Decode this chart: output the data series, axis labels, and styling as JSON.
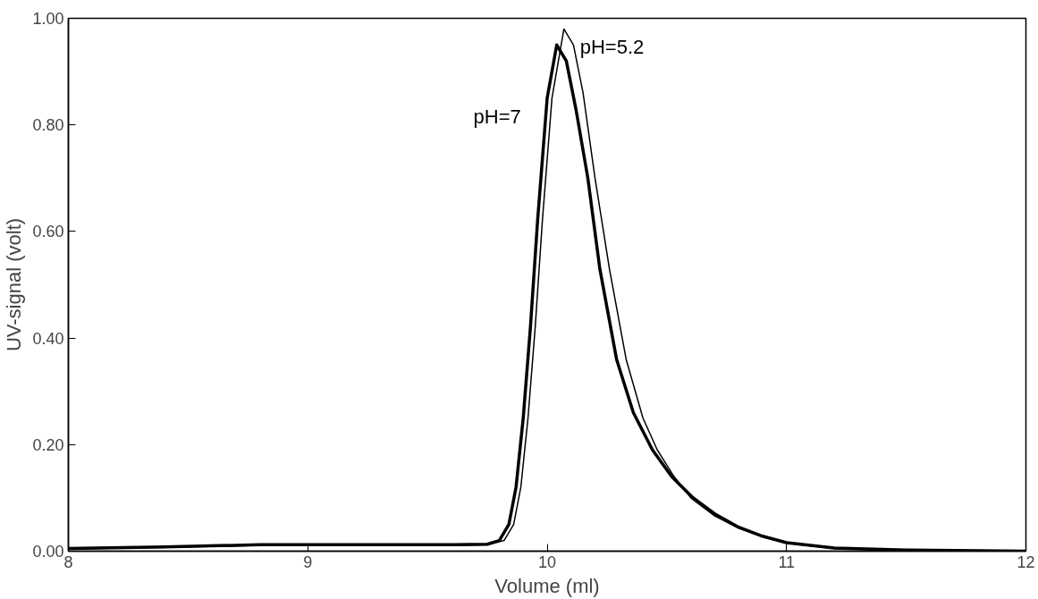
{
  "chart_data": {
    "type": "line",
    "xlabel": "Volume (ml)",
    "ylabel": "UV-signal (volt)",
    "xlim": [
      8,
      12
    ],
    "ylim": [
      0,
      1
    ],
    "xticks": [
      8,
      9,
      10,
      11,
      12
    ],
    "yticks": [
      {
        "value": 0,
        "label": "0.00"
      },
      {
        "value": 0.2,
        "label": "0.20"
      },
      {
        "value": 0.4,
        "label": "0.40"
      },
      {
        "value": 0.6,
        "label": "0.60"
      },
      {
        "value": 0.8,
        "label": "0.80"
      },
      {
        "value": 1,
        "label": "1.00"
      }
    ],
    "grid": false,
    "marker": "none",
    "line_style": "solid",
    "series": [
      {
        "name": "pH=7",
        "color": "#000000",
        "x": [
          8,
          8.4,
          8.8,
          9.2,
          9.6,
          9.75,
          9.8,
          9.84,
          9.87,
          9.9,
          9.93,
          9.96,
          10.0,
          10.04,
          10.08,
          10.12,
          10.17,
          10.22,
          10.29,
          10.36,
          10.44,
          10.52,
          10.61,
          10.7,
          10.8,
          10.9,
          11,
          11.2,
          11.5,
          12
        ],
        "values": [
          0.005,
          0.008,
          0.012,
          0.012,
          0.012,
          0.013,
          0.02,
          0.05,
          0.12,
          0.25,
          0.42,
          0.62,
          0.85,
          0.95,
          0.92,
          0.83,
          0.7,
          0.53,
          0.36,
          0.26,
          0.19,
          0.14,
          0.1,
          0.07,
          0.045,
          0.028,
          0.016,
          0.006,
          0.002,
          0
        ]
      },
      {
        "name": "pH=5.2",
        "color": "#000000",
        "x": [
          8,
          8.4,
          8.8,
          9.2,
          9.6,
          9.75,
          9.82,
          9.86,
          9.89,
          9.92,
          9.95,
          9.98,
          10.02,
          10.07,
          10.11,
          10.15,
          10.2,
          10.26,
          10.33,
          10.4,
          10.46,
          10.53,
          10.6,
          10.7,
          10.8,
          10.9,
          11,
          11.2,
          11.5,
          12
        ],
        "values": [
          0.004,
          0.007,
          0.011,
          0.011,
          0.011,
          0.012,
          0.02,
          0.05,
          0.12,
          0.25,
          0.42,
          0.62,
          0.85,
          0.98,
          0.95,
          0.86,
          0.7,
          0.53,
          0.36,
          0.25,
          0.19,
          0.14,
          0.1,
          0.066,
          0.043,
          0.027,
          0.015,
          0.005,
          0.002,
          0
        ]
      }
    ]
  }
}
